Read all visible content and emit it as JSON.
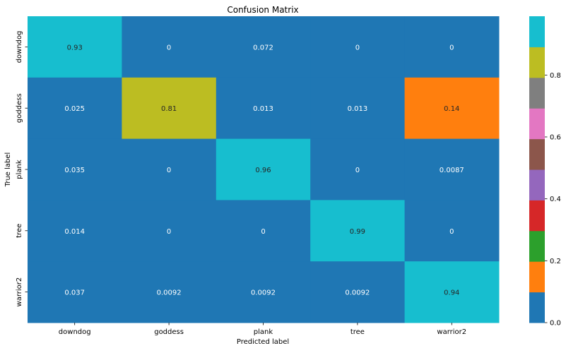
{
  "chart_data": {
    "type": "heatmap",
    "title": "Confusion Matrix",
    "xlabel": "Predicted label",
    "ylabel": "True label",
    "x_categories": [
      "downdog",
      "goddess",
      "plank",
      "tree",
      "warrior2"
    ],
    "y_categories": [
      "downdog",
      "goddess",
      "plank",
      "tree",
      "warrior2"
    ],
    "values": [
      [
        0.93,
        0,
        0.072,
        0,
        0
      ],
      [
        0.025,
        0.81,
        0.013,
        0.013,
        0.14
      ],
      [
        0.035,
        0,
        0.96,
        0,
        0.0087
      ],
      [
        0.014,
        0,
        0,
        0.99,
        0
      ],
      [
        0.037,
        0.0092,
        0.0092,
        0.0092,
        0.94
      ]
    ],
    "value_labels": [
      [
        "0.93",
        "0",
        "0.072",
        "0",
        "0"
      ],
      [
        "0.025",
        "0.81",
        "0.013",
        "0.013",
        "0.14"
      ],
      [
        "0.035",
        "0",
        "0.96",
        "0",
        "0.0087"
      ],
      [
        "0.014",
        "0",
        "0",
        "0.99",
        "0"
      ],
      [
        "0.037",
        "0.0092",
        "0.0092",
        "0.0092",
        "0.94"
      ]
    ],
    "colormap": "tab10",
    "colormap_colors": [
      "#1f77b4",
      "#ff7f0e",
      "#2ca02c",
      "#d62728",
      "#9467bd",
      "#8c564b",
      "#e377c2",
      "#7f7f7f",
      "#bcbd22",
      "#17becf"
    ],
    "colorbar_range": [
      0,
      0.99
    ],
    "colorbar_ticks": [
      0.0,
      0.2,
      0.4,
      0.6,
      0.8
    ],
    "colorbar_tick_labels": [
      "0.0",
      "0.2",
      "0.4",
      "0.6",
      "0.8"
    ],
    "grid": false
  }
}
